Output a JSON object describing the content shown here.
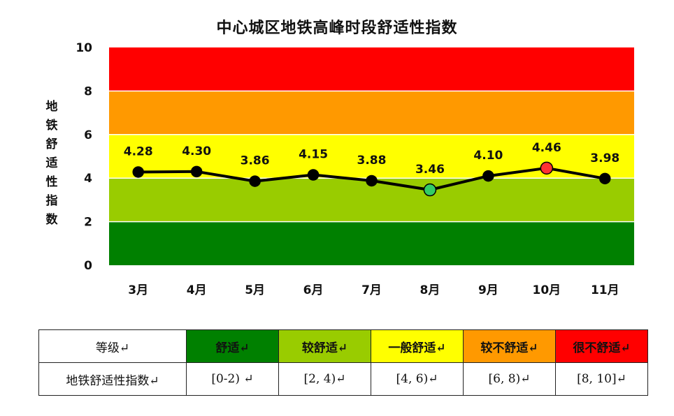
{
  "chart_data": {
    "type": "line",
    "title": "中心城区地铁高峰时段舒适性指数",
    "ylabel": "地铁舒适性指数",
    "categories": [
      "3月",
      "4月",
      "5月",
      "6月",
      "7月",
      "8月",
      "9月",
      "10月",
      "11月"
    ],
    "series": [
      {
        "values": [
          4.28,
          4.3,
          3.86,
          4.15,
          3.88,
          3.46,
          4.1,
          4.46,
          3.98
        ]
      }
    ],
    "data_labels": [
      "4.28",
      "4.30",
      "3.86",
      "4.15",
      "3.88",
      "3.46",
      "4.10",
      "4.46",
      "3.98"
    ],
    "ylim": [
      0,
      10
    ],
    "yticks": [
      "0",
      "2",
      "4",
      "6",
      "8",
      "10"
    ],
    "grid": false,
    "bands": [
      {
        "from": 0,
        "to": 2,
        "color": "#008000"
      },
      {
        "from": 2,
        "to": 4,
        "color": "#99cc00"
      },
      {
        "from": 4,
        "to": 6,
        "color": "#ffff00"
      },
      {
        "from": 6,
        "to": 8,
        "color": "#ff9900"
      },
      {
        "from": 8,
        "to": 10,
        "color": "#ff0000"
      }
    ],
    "line_color": "#000000",
    "highlight_points": [
      {
        "index": 5,
        "color": "#33cc66"
      },
      {
        "index": 7,
        "color": "#ff3333"
      }
    ]
  },
  "legend_table": {
    "header_label": "等级↵",
    "row_label": "地铁舒适性指数↵",
    "levels": [
      {
        "name": "舒适↵",
        "range": "[0-2) ↵",
        "color": "#008000"
      },
      {
        "name": "较舒适↵",
        "range": "[2, 4)↵",
        "color": "#99cc00"
      },
      {
        "name": "一般舒适↵",
        "range": "[4, 6)↵",
        "color": "#ffff00"
      },
      {
        "name": "较不舒适↵",
        "range": "[6, 8)↵",
        "color": "#ff9900"
      },
      {
        "name": "很不舒适↵",
        "range": "[8, 10]↵",
        "color": "#ff0000"
      }
    ]
  }
}
